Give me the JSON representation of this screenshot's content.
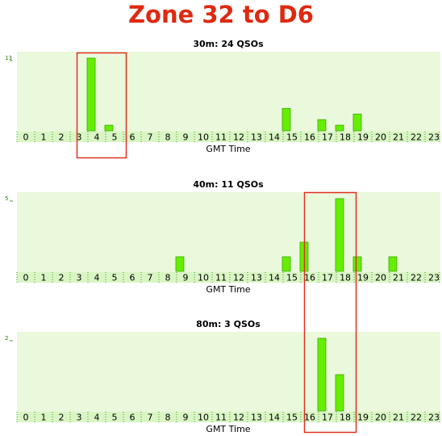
{
  "title": "Zone 32 to D6",
  "chart_data": [
    {
      "type": "bar",
      "title": "30m: 24 QSOs",
      "xlabel": "GMT Time",
      "categories": [
        "0",
        "1",
        "2",
        "3",
        "4",
        "5",
        "6",
        "7",
        "8",
        "9",
        "10",
        "11",
        "12",
        "13",
        "14",
        "15",
        "16",
        "17",
        "18",
        "19",
        "20",
        "21",
        "22",
        "23"
      ],
      "values": [
        0,
        0,
        0,
        0,
        13,
        1,
        0,
        0,
        0,
        0,
        0,
        0,
        0,
        0,
        0,
        4,
        0,
        2,
        1,
        3,
        0,
        0,
        0,
        0
      ],
      "color": "#66ee00",
      "ylim": [
        0,
        13
      ],
      "yticks": [
        13
      ]
    },
    {
      "type": "bar",
      "title": "40m: 11 QSOs",
      "xlabel": "GMT Time",
      "categories": [
        "0",
        "1",
        "2",
        "3",
        "4",
        "5",
        "6",
        "7",
        "8",
        "9",
        "10",
        "11",
        "12",
        "13",
        "14",
        "15",
        "16",
        "17",
        "18",
        "19",
        "20",
        "21",
        "22",
        "23"
      ],
      "values": [
        0,
        0,
        0,
        0,
        0,
        0,
        0,
        0,
        0,
        1,
        0,
        0,
        0,
        0,
        0,
        1,
        2,
        0,
        5,
        1,
        0,
        1,
        0,
        0
      ],
      "color": "#66ee00",
      "ylim": [
        0,
        5
      ],
      "yticks": [
        5
      ]
    },
    {
      "type": "bar",
      "title": "80m: 3 QSOs",
      "xlabel": "GMT Time",
      "categories": [
        "0",
        "1",
        "2",
        "3",
        "4",
        "5",
        "6",
        "7",
        "8",
        "9",
        "10",
        "11",
        "12",
        "13",
        "14",
        "15",
        "16",
        "17",
        "18",
        "19",
        "20",
        "21",
        "22",
        "23"
      ],
      "values": [
        0,
        0,
        0,
        0,
        0,
        0,
        0,
        0,
        0,
        0,
        0,
        0,
        0,
        0,
        0,
        0,
        0,
        2,
        1,
        0,
        0,
        0,
        0,
        0
      ],
      "color": "#66ee00",
      "ylim": [
        0,
        2
      ],
      "yticks": [
        2
      ]
    }
  ]
}
